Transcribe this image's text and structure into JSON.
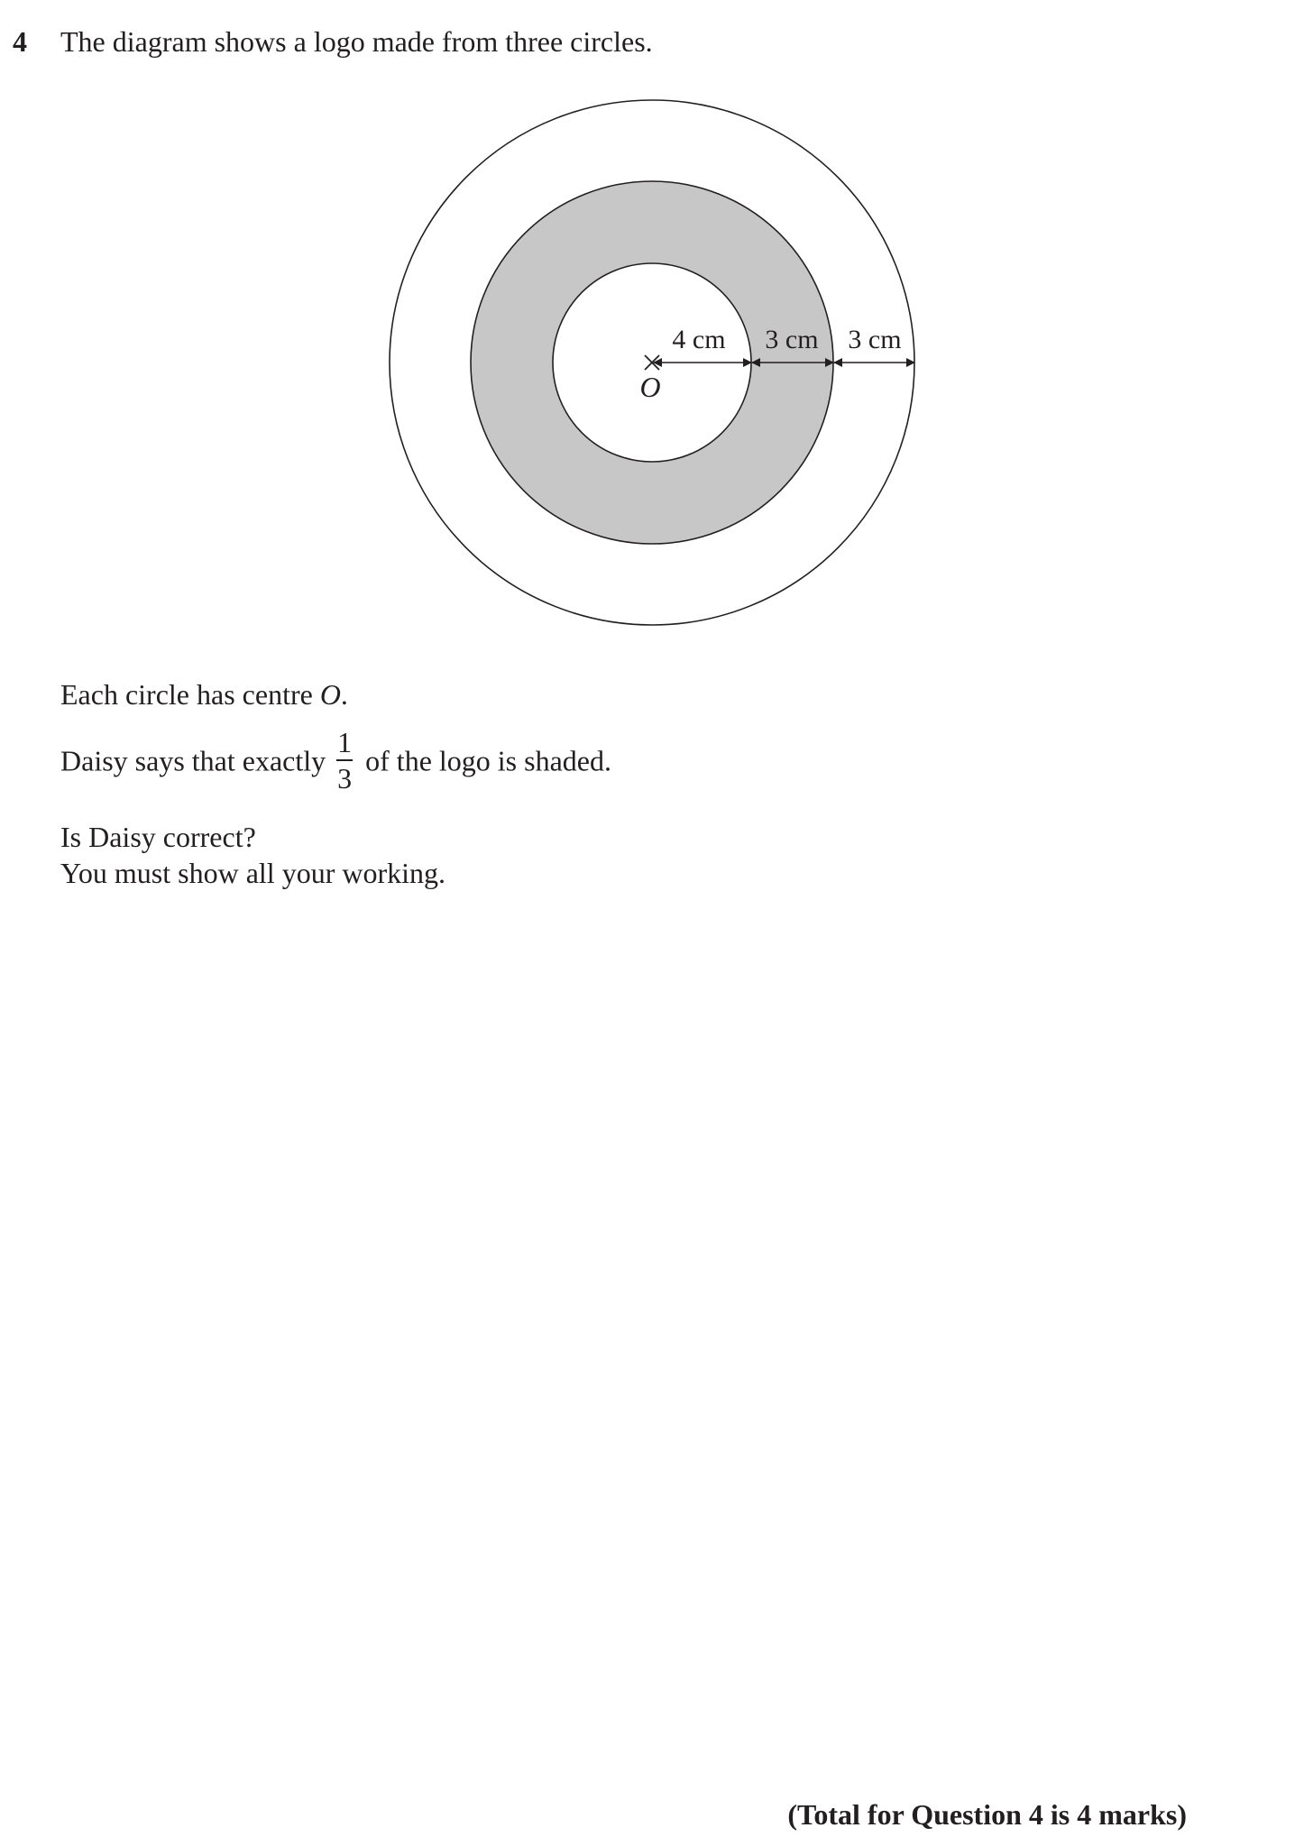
{
  "question": {
    "number": "4",
    "intro": "The diagram shows a logo made from three circles."
  },
  "diagram": {
    "shaded_color": "#c8c7c7",
    "centre_label": "O",
    "centre_marker": "cross-mark",
    "radius_label": "4 cm",
    "band_label_middle": "3 cm",
    "band_label_outer": "3 cm"
  },
  "body": {
    "line1_text": "Each circle has centre ",
    "line1_symbol": "O",
    "line1_end": ".",
    "line2_before": "Daisy says that exactly",
    "fraction_numerator": "1",
    "fraction_denominator": "3",
    "line2_after": "of the logo is shaded.",
    "line3": "Is Daisy correct?",
    "line4": "You must show all your working."
  },
  "footer": {
    "total": "(Total for Question 4 is 4 marks)"
  }
}
